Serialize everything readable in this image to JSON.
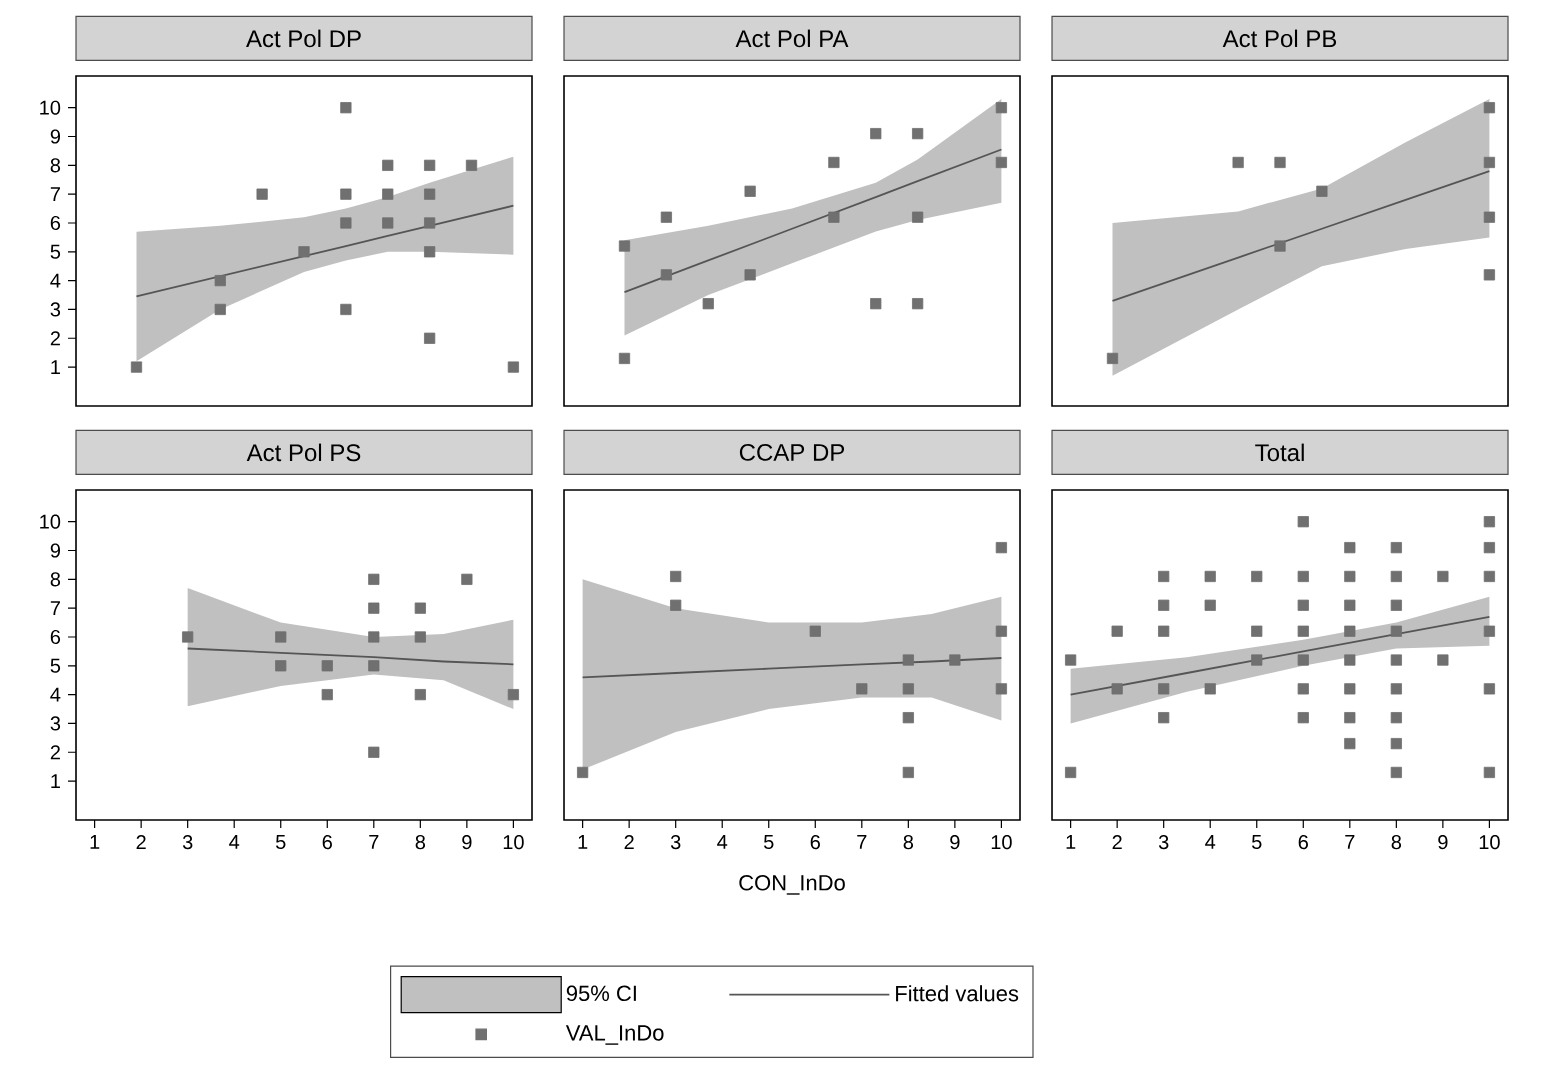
{
  "chart_data": [
    {
      "type": "scatter",
      "title": "Act Pol DP",
      "annotations": [
        "95% CI"
      ],
      "xlim": [
        0.6,
        10.4
      ],
      "ylim": [
        -0.35,
        11.1
      ],
      "yticks": [
        1,
        2,
        3,
        4,
        5,
        6,
        7,
        8,
        9,
        10
      ],
      "tick_labels": "y",
      "legend": "bottom",
      "series": [
        {
          "type": "line",
          "name": "Fitted values",
          "color": "#555555",
          "x": [
            1.9,
            3.7,
            5.5,
            6.4,
            7.3,
            8.2,
            10
          ],
          "values": [
            3.45,
            4.15,
            4.85,
            5.2,
            5.55,
            5.9,
            6.6
          ],
          "lower": [
            1.2,
            3.0,
            4.3,
            4.7,
            5.0,
            5.0,
            4.9
          ],
          "upper": [
            5.7,
            5.9,
            6.2,
            6.5,
            6.9,
            7.4,
            8.3
          ]
        },
        {
          "type": "scatter",
          "name": "VAL_InDo",
          "color": "#707070",
          "marker": "square",
          "x": [
            1.9,
            3.7,
            3.7,
            4.6,
            5.5,
            6.4,
            6.4,
            6.4,
            6.4,
            7.3,
            7.3,
            7.3,
            8.2,
            8.2,
            8.2,
            8.2,
            8.2,
            9.1,
            10
          ],
          "values": [
            1,
            4,
            3,
            7,
            5,
            10,
            7,
            6,
            3,
            8,
            7,
            6,
            8,
            7,
            6,
            5,
            2,
            8,
            1
          ]
        }
      ]
    },
    {
      "type": "scatter",
      "title": "Act Pol PA",
      "xlim": [
        0.6,
        10.4
      ],
      "ylim": [
        -0.35,
        11.1
      ],
      "tick_labels": false,
      "series": [
        {
          "type": "line",
          "color": "#555555",
          "x": [
            1.9,
            3.7,
            5.5,
            7.3,
            8.2,
            10
          ],
          "values": [
            3.6,
            4.7,
            5.8,
            6.9,
            7.45,
            8.55
          ],
          "lower": [
            2.1,
            3.5,
            4.6,
            5.7,
            6.1,
            6.7
          ],
          "upper": [
            5.4,
            5.9,
            6.5,
            7.4,
            8.2,
            10.3
          ]
        },
        {
          "type": "scatter",
          "color": "#707070",
          "marker": "square",
          "x": [
            1.9,
            1.9,
            2.8,
            2.8,
            3.7,
            4.6,
            4.6,
            6.4,
            6.4,
            7.3,
            7.3,
            8.2,
            8.2,
            8.2,
            10,
            10
          ],
          "values": [
            5.2,
            1.3,
            6.2,
            4.2,
            3.2,
            7.1,
            4.2,
            8.1,
            6.2,
            9.1,
            3.2,
            9.1,
            6.2,
            3.2,
            10,
            8.1
          ]
        }
      ]
    },
    {
      "type": "scatter",
      "title": "Act Pol PB",
      "xlim": [
        0.6,
        10.4
      ],
      "ylim": [
        -0.35,
        11.1
      ],
      "tick_labels": false,
      "series": [
        {
          "type": "line",
          "color": "#555555",
          "x": [
            1.9,
            4.6,
            6.4,
            8.2,
            10
          ],
          "values": [
            3.3,
            4.8,
            5.8,
            6.8,
            7.8
          ],
          "lower": [
            0.7,
            3.0,
            4.5,
            5.1,
            5.5
          ],
          "upper": [
            6.0,
            6.4,
            7.2,
            8.8,
            10.3
          ]
        },
        {
          "type": "scatter",
          "color": "#707070",
          "marker": "square",
          "x": [
            1.9,
            4.6,
            5.5,
            5.5,
            6.4,
            10,
            10,
            10,
            10
          ],
          "values": [
            1.3,
            8.1,
            8.1,
            5.2,
            7.1,
            10,
            8.1,
            6.2,
            4.2
          ]
        }
      ]
    },
    {
      "type": "scatter",
      "title": "Act Pol PS",
      "xlim": [
        0.6,
        10.4
      ],
      "ylim": [
        -0.35,
        11.1
      ],
      "xticks": [
        1,
        2,
        3,
        4,
        5,
        6,
        7,
        8,
        9,
        10
      ],
      "yticks": [
        1,
        2,
        3,
        4,
        5,
        6,
        7,
        8,
        9,
        10
      ],
      "series": [
        {
          "type": "line",
          "color": "#555555",
          "x": [
            3,
            5,
            7,
            8.5,
            10
          ],
          "values": [
            5.6,
            5.45,
            5.3,
            5.15,
            5.05
          ],
          "lower": [
            3.6,
            4.3,
            4.7,
            4.5,
            3.5
          ],
          "upper": [
            7.7,
            6.5,
            6.0,
            6.1,
            6.6
          ]
        },
        {
          "type": "scatter",
          "color": "#707070",
          "marker": "square",
          "x": [
            3,
            5,
            5,
            6,
            6,
            7,
            7,
            7,
            7,
            7,
            8,
            8,
            8,
            9,
            10
          ],
          "values": [
            6,
            6,
            5,
            5,
            4,
            8,
            7,
            6,
            5,
            2,
            7,
            6,
            4,
            8,
            4
          ]
        }
      ]
    },
    {
      "type": "scatter",
      "title": "CCAP DP",
      "xlabel": "CON_InDo",
      "xlim": [
        0.6,
        10.4
      ],
      "ylim": [
        -0.35,
        11.1
      ],
      "xticks": [
        1,
        2,
        3,
        4,
        5,
        6,
        7,
        8,
        9,
        10
      ],
      "tick_labels": "x",
      "series": [
        {
          "type": "line",
          "color": "#555555",
          "x": [
            1,
            3,
            5,
            7,
            8.5,
            10
          ],
          "values": [
            4.6,
            4.75,
            4.9,
            5.05,
            5.15,
            5.27
          ],
          "lower": [
            1.4,
            2.7,
            3.5,
            3.9,
            3.9,
            3.1
          ],
          "upper": [
            8.0,
            7.0,
            6.5,
            6.5,
            6.8,
            7.4
          ]
        },
        {
          "type": "scatter",
          "color": "#707070",
          "marker": "square",
          "x": [
            1,
            3,
            3,
            6,
            7,
            8,
            8,
            8,
            8,
            9,
            10,
            10,
            10
          ],
          "values": [
            1.3,
            8.1,
            7.1,
            6.2,
            4.2,
            5.2,
            4.2,
            3.2,
            1.3,
            5.2,
            9.1,
            6.2,
            4.2
          ]
        }
      ]
    },
    {
      "type": "scatter",
      "title": "Total",
      "xlim": [
        0.6,
        10.4
      ],
      "ylim": [
        -0.35,
        11.1
      ],
      "xticks": [
        1,
        2,
        3,
        4,
        5,
        6,
        7,
        8,
        9,
        10
      ],
      "tick_labels": "x",
      "series": [
        {
          "type": "line",
          "color": "#555555",
          "x": [
            1,
            3.5,
            6,
            8,
            10
          ],
          "values": [
            4.0,
            4.75,
            5.5,
            6.1,
            6.7
          ],
          "lower": [
            3.0,
            4.1,
            5.0,
            5.6,
            5.7
          ],
          "upper": [
            4.9,
            5.3,
            5.9,
            6.5,
            7.4
          ]
        },
        {
          "type": "scatter",
          "color": "#707070",
          "marker": "square",
          "x": [
            1,
            1,
            2,
            2,
            3,
            3,
            3,
            3,
            3,
            4,
            4,
            4,
            5,
            5,
            5,
            6,
            6,
            6,
            6,
            6,
            6,
            6,
            7,
            7,
            7,
            7,
            7,
            7,
            7,
            7,
            8,
            8,
            8,
            8,
            8,
            8,
            8,
            8,
            8,
            9,
            9,
            10,
            10,
            10,
            10,
            10,
            10
          ],
          "values": [
            5.2,
            1.3,
            6.2,
            4.2,
            8.1,
            7.1,
            6.2,
            4.2,
            3.2,
            8.1,
            7.1,
            4.2,
            8.1,
            6.2,
            5.2,
            10,
            8.1,
            7.1,
            6.2,
            5.2,
            4.2,
            3.2,
            9.1,
            8.1,
            7.1,
            6.2,
            5.2,
            4.2,
            3.2,
            2.3,
            9.1,
            8.1,
            7.1,
            6.2,
            5.2,
            4.2,
            3.2,
            2.3,
            1.3,
            8.1,
            5.2,
            10,
            9.1,
            8.1,
            6.2,
            4.2,
            1.3
          ]
        }
      ]
    }
  ]
}
